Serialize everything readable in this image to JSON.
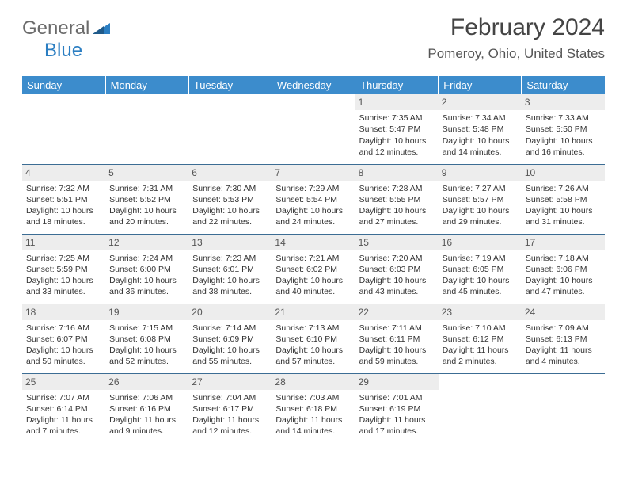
{
  "logo": {
    "text1": "General",
    "text2": "Blue"
  },
  "title": "February 2024",
  "location": "Pomeroy, Ohio, United States",
  "colors": {
    "header_bg": "#3c8ccc",
    "header_text": "#ffffff",
    "row_border": "#3c6d94",
    "daynum_bg": "#ededed",
    "text": "#333333",
    "logo_gray": "#6b6b6b",
    "logo_blue": "#2b7ec2",
    "bg": "#ffffff"
  },
  "weekdays": [
    "Sunday",
    "Monday",
    "Tuesday",
    "Wednesday",
    "Thursday",
    "Friday",
    "Saturday"
  ],
  "weeks": [
    [
      null,
      null,
      null,
      null,
      {
        "d": "1",
        "sr": "7:35 AM",
        "ss": "5:47 PM",
        "dl": "10 hours and 12 minutes."
      },
      {
        "d": "2",
        "sr": "7:34 AM",
        "ss": "5:48 PM",
        "dl": "10 hours and 14 minutes."
      },
      {
        "d": "3",
        "sr": "7:33 AM",
        "ss": "5:50 PM",
        "dl": "10 hours and 16 minutes."
      }
    ],
    [
      {
        "d": "4",
        "sr": "7:32 AM",
        "ss": "5:51 PM",
        "dl": "10 hours and 18 minutes."
      },
      {
        "d": "5",
        "sr": "7:31 AM",
        "ss": "5:52 PM",
        "dl": "10 hours and 20 minutes."
      },
      {
        "d": "6",
        "sr": "7:30 AM",
        "ss": "5:53 PM",
        "dl": "10 hours and 22 minutes."
      },
      {
        "d": "7",
        "sr": "7:29 AM",
        "ss": "5:54 PM",
        "dl": "10 hours and 24 minutes."
      },
      {
        "d": "8",
        "sr": "7:28 AM",
        "ss": "5:55 PM",
        "dl": "10 hours and 27 minutes."
      },
      {
        "d": "9",
        "sr": "7:27 AM",
        "ss": "5:57 PM",
        "dl": "10 hours and 29 minutes."
      },
      {
        "d": "10",
        "sr": "7:26 AM",
        "ss": "5:58 PM",
        "dl": "10 hours and 31 minutes."
      }
    ],
    [
      {
        "d": "11",
        "sr": "7:25 AM",
        "ss": "5:59 PM",
        "dl": "10 hours and 33 minutes."
      },
      {
        "d": "12",
        "sr": "7:24 AM",
        "ss": "6:00 PM",
        "dl": "10 hours and 36 minutes."
      },
      {
        "d": "13",
        "sr": "7:23 AM",
        "ss": "6:01 PM",
        "dl": "10 hours and 38 minutes."
      },
      {
        "d": "14",
        "sr": "7:21 AM",
        "ss": "6:02 PM",
        "dl": "10 hours and 40 minutes."
      },
      {
        "d": "15",
        "sr": "7:20 AM",
        "ss": "6:03 PM",
        "dl": "10 hours and 43 minutes."
      },
      {
        "d": "16",
        "sr": "7:19 AM",
        "ss": "6:05 PM",
        "dl": "10 hours and 45 minutes."
      },
      {
        "d": "17",
        "sr": "7:18 AM",
        "ss": "6:06 PM",
        "dl": "10 hours and 47 minutes."
      }
    ],
    [
      {
        "d": "18",
        "sr": "7:16 AM",
        "ss": "6:07 PM",
        "dl": "10 hours and 50 minutes."
      },
      {
        "d": "19",
        "sr": "7:15 AM",
        "ss": "6:08 PM",
        "dl": "10 hours and 52 minutes."
      },
      {
        "d": "20",
        "sr": "7:14 AM",
        "ss": "6:09 PM",
        "dl": "10 hours and 55 minutes."
      },
      {
        "d": "21",
        "sr": "7:13 AM",
        "ss": "6:10 PM",
        "dl": "10 hours and 57 minutes."
      },
      {
        "d": "22",
        "sr": "7:11 AM",
        "ss": "6:11 PM",
        "dl": "10 hours and 59 minutes."
      },
      {
        "d": "23",
        "sr": "7:10 AM",
        "ss": "6:12 PM",
        "dl": "11 hours and 2 minutes."
      },
      {
        "d": "24",
        "sr": "7:09 AM",
        "ss": "6:13 PM",
        "dl": "11 hours and 4 minutes."
      }
    ],
    [
      {
        "d": "25",
        "sr": "7:07 AM",
        "ss": "6:14 PM",
        "dl": "11 hours and 7 minutes."
      },
      {
        "d": "26",
        "sr": "7:06 AM",
        "ss": "6:16 PM",
        "dl": "11 hours and 9 minutes."
      },
      {
        "d": "27",
        "sr": "7:04 AM",
        "ss": "6:17 PM",
        "dl": "11 hours and 12 minutes."
      },
      {
        "d": "28",
        "sr": "7:03 AM",
        "ss": "6:18 PM",
        "dl": "11 hours and 14 minutes."
      },
      {
        "d": "29",
        "sr": "7:01 AM",
        "ss": "6:19 PM",
        "dl": "11 hours and 17 minutes."
      },
      null,
      null
    ]
  ],
  "labels": {
    "sunrise": "Sunrise:",
    "sunset": "Sunset:",
    "daylight": "Daylight:"
  }
}
